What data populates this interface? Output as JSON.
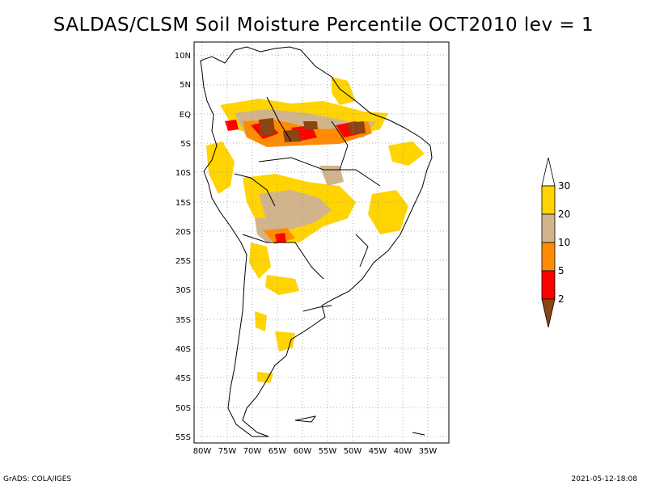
{
  "title": "SALDAS/CLSM Soil Moisture Percentile OCT2010 lev = 1",
  "lat_labels": [
    "10N",
    "5N",
    "EQ",
    "5S",
    "10S",
    "15S",
    "20S",
    "25S",
    "30S",
    "35S",
    "40S",
    "45S",
    "50S",
    "55S"
  ],
  "lon_labels": [
    "80W",
    "75W",
    "70W",
    "65W",
    "60W",
    "55W",
    "50W",
    "45W",
    "40W",
    "35W"
  ],
  "colorbar": {
    "labels": [
      "30",
      "20",
      "10",
      "5",
      "2"
    ],
    "colors": {
      "above30": "#ffffff",
      "c20_30": "#ffd400",
      "c10_20": "#d2b48c",
      "c5_10": "#ff8c00",
      "c2_5": "#ff0000",
      "below2": "#8b4513"
    }
  },
  "footer": {
    "left": "GrADS: COLA/IGES",
    "right": "2021-05-12-18:08"
  }
}
